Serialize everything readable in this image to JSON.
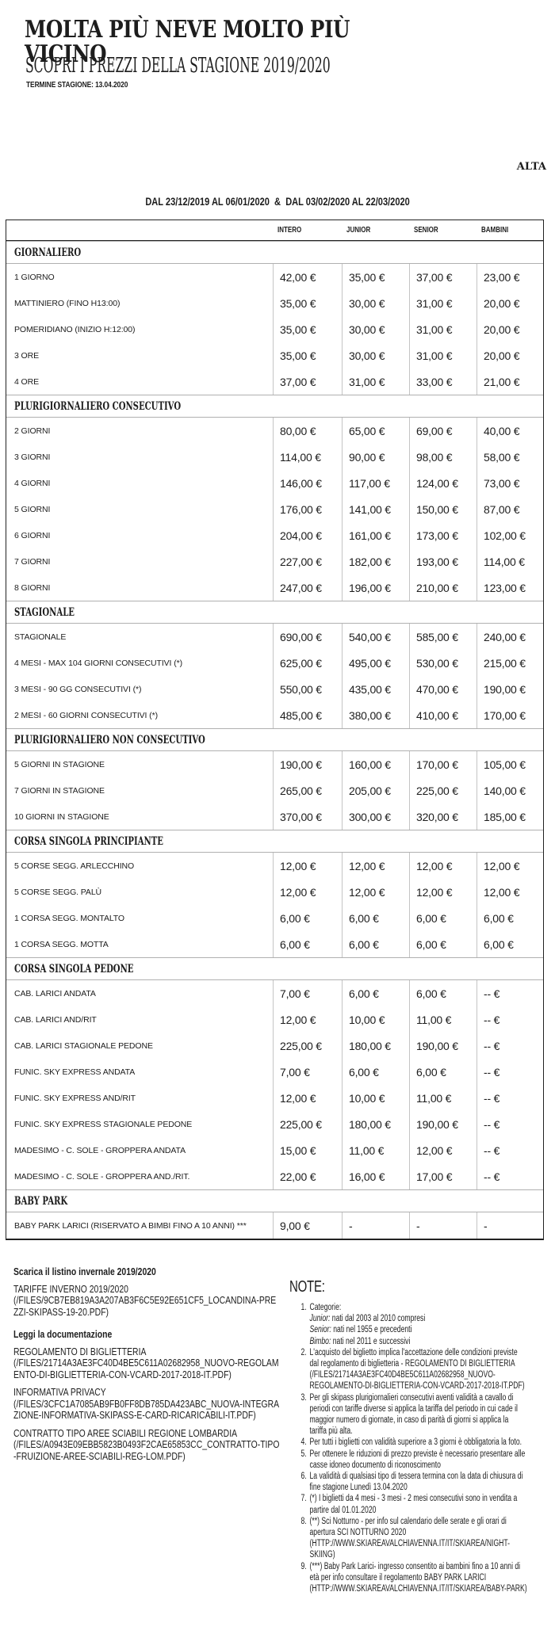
{
  "colors": {
    "text": "#1d1d1d",
    "table_border": "#222222",
    "section_line": "#b0b0b0",
    "column_divider": "#c4c4c4"
  },
  "header": {
    "title": "MOLTA PIÙ NEVE MOLTO PIÙ VICINO",
    "subtitle": "SCOPRI I PREZZI DELLA STAGIONE 2019/2020",
    "season_end": "TERMINE STAGIONE: 13.04.2020",
    "season_label": "ALTA",
    "period": "DAL 23/12/2019 AL 06/01/2020  &  DAL 03/02/2020 AL 22/03/2020"
  },
  "table": {
    "columns": [
      "INTERO",
      "JUNIOR",
      "SENIOR",
      "BAMBINI"
    ],
    "sections": [
      {
        "name": "GIORNALIERO",
        "rows": [
          {
            "label": "1 GIORNO",
            "prices": [
              "42,00 €",
              "35,00 €",
              "37,00 €",
              "23,00 €"
            ]
          },
          {
            "label": "MATTINIERO (FINO H13:00)",
            "prices": [
              "35,00 €",
              "30,00 €",
              "31,00 €",
              "20,00 €"
            ]
          },
          {
            "label": "POMERIDIANO (INIZIO H:12:00)",
            "prices": [
              "35,00 €",
              "30,00 €",
              "31,00 €",
              "20,00 €"
            ]
          },
          {
            "label": "3 ORE",
            "prices": [
              "35,00 €",
              "30,00 €",
              "31,00 €",
              "20,00 €"
            ]
          },
          {
            "label": "4 ORE",
            "prices": [
              "37,00 €",
              "31,00 €",
              "33,00 €",
              "21,00 €"
            ]
          }
        ]
      },
      {
        "name": "PLURIGIORNALIERO CONSECUTIVO",
        "rows": [
          {
            "label": "2 GIORNI",
            "prices": [
              "80,00 €",
              "65,00 €",
              "69,00 €",
              "40,00 €"
            ]
          },
          {
            "label": "3 GIORNI",
            "prices": [
              "114,00 €",
              "90,00 €",
              "98,00 €",
              "58,00 €"
            ]
          },
          {
            "label": "4 GIORNI",
            "prices": [
              "146,00 €",
              "117,00 €",
              "124,00 €",
              "73,00 €"
            ]
          },
          {
            "label": "5 GIORNI",
            "prices": [
              "176,00 €",
              "141,00 €",
              "150,00 €",
              "87,00 €"
            ]
          },
          {
            "label": "6 GIORNI",
            "prices": [
              "204,00 €",
              "161,00 €",
              "173,00 €",
              "102,00 €"
            ]
          },
          {
            "label": "7 GIORNI",
            "prices": [
              "227,00 €",
              "182,00 €",
              "193,00 €",
              "114,00 €"
            ]
          },
          {
            "label": "8 GIORNI",
            "prices": [
              "247,00 €",
              "196,00 €",
              "210,00 €",
              "123,00 €"
            ]
          }
        ]
      },
      {
        "name": "STAGIONALE",
        "rows": [
          {
            "label": "STAGIONALE",
            "prices": [
              "690,00 €",
              "540,00 €",
              "585,00 €",
              "240,00 €"
            ]
          },
          {
            "label": "4 MESI - MAX 104 GIORNI CONSECUTIVI (*)",
            "prices": [
              "625,00 €",
              "495,00 €",
              "530,00 €",
              "215,00 €"
            ]
          },
          {
            "label": "3 MESI - 90 GG CONSECUTIVI (*)",
            "prices": [
              "550,00 €",
              "435,00 €",
              "470,00 €",
              "190,00 €"
            ]
          },
          {
            "label": "2 MESI - 60 GIORNI CONSECUTIVI (*)",
            "prices": [
              "485,00 €",
              "380,00 €",
              "410,00 €",
              "170,00 €"
            ]
          }
        ]
      },
      {
        "name": "PLURIGIORNALIERO NON CONSECUTIVO",
        "rows": [
          {
            "label": "5 GIORNI IN STAGIONE",
            "prices": [
              "190,00 €",
              "160,00 €",
              "170,00 €",
              "105,00 €"
            ]
          },
          {
            "label": "7 GIORNI IN STAGIONE",
            "prices": [
              "265,00 €",
              "205,00 €",
              "225,00 €",
              "140,00 €"
            ]
          },
          {
            "label": "10 GIORNI IN STAGIONE",
            "prices": [
              "370,00 €",
              "300,00 €",
              "320,00 €",
              "185,00 €"
            ]
          }
        ]
      },
      {
        "name": "CORSA SINGOLA PRINCIPIANTE",
        "rows": [
          {
            "label": "5 CORSE SEGG. ARLECCHINO",
            "prices": [
              "12,00 €",
              "12,00 €",
              "12,00 €",
              "12,00 €"
            ]
          },
          {
            "label": "5 CORSE SEGG. PALÙ",
            "prices": [
              "12,00 €",
              "12,00 €",
              "12,00 €",
              "12,00 €"
            ]
          },
          {
            "label": "1 CORSA SEGG. MONTALTO",
            "prices": [
              "6,00 €",
              "6,00 €",
              "6,00 €",
              "6,00 €"
            ]
          },
          {
            "label": "1 CORSA SEGG. MOTTA",
            "prices": [
              "6,00 €",
              "6,00 €",
              "6,00 €",
              "6,00 €"
            ]
          }
        ]
      },
      {
        "name": "CORSA SINGOLA PEDONE",
        "rows": [
          {
            "label": "CAB. LARICI ANDATA",
            "prices": [
              "7,00 €",
              "6,00 €",
              "6,00 €",
              "-- €"
            ]
          },
          {
            "label": "CAB. LARICI AND/RIT",
            "prices": [
              "12,00 €",
              "10,00 €",
              "11,00 €",
              "-- €"
            ]
          },
          {
            "label": "CAB. LARICI STAGIONALE PEDONE",
            "prices": [
              "225,00 €",
              "180,00 €",
              "190,00 €",
              "-- €"
            ]
          },
          {
            "label": "FUNIC. SKY EXPRESS ANDATA",
            "prices": [
              "7,00 €",
              "6,00 €",
              "6,00 €",
              "-- €"
            ]
          },
          {
            "label": "FUNIC. SKY EXPRESS AND/RIT",
            "prices": [
              "12,00 €",
              "10,00 €",
              "11,00 €",
              "-- €"
            ]
          },
          {
            "label": "FUNIC. SKY EXPRESS STAGIONALE PEDONE",
            "prices": [
              "225,00 €",
              "180,00 €",
              "190,00 €",
              "-- €"
            ]
          },
          {
            "label": "MADESIMO - C. SOLE - GROPPERA ANDATA",
            "prices": [
              "15,00 €",
              "11,00 €",
              "12,00 €",
              "-- €"
            ]
          },
          {
            "label": "MADESIMO - C. SOLE - GROPPERA AND./RIT.",
            "prices": [
              "22,00 €",
              "16,00 €",
              "17,00 €",
              "-- €"
            ]
          }
        ]
      },
      {
        "name": "BABY PARK",
        "rows": [
          {
            "label": "BABY PARK LARICI (RISERVATO A BIMBI FINO A 10 ANNI) ***",
            "prices": [
              "9,00 €",
              "-",
              "-",
              "-"
            ]
          }
        ]
      }
    ]
  },
  "downloads": {
    "heading1": "Scarica il listino invernale 2019/2020",
    "links1": [
      {
        "label": "TARIFFE INVERNO 2019/2020",
        "url": "(/FILES/9CB7EB819A3A207AB3F6C5E92E651CF5_LOCANDINA-PREZZI-SKIPASS-19-20.PDF)"
      }
    ],
    "heading2": "Leggi la documentazione",
    "links2": [
      {
        "label": "REGOLAMENTO DI BIGLIETTERIA",
        "url": "(/FILES/21714A3AE3FC40D4BE5C611A02682958_NUOVO-REGOLAMENTO-DI-BIGLIETTERIA-CON-VCARD-2017-2018-IT.PDF)"
      },
      {
        "label": "INFORMATIVA PRIVACY",
        "url": "(/FILES/3CFC1A7085AB9FB0FF8DB785DA423ABC_NUOVA-INTEGRAZIONE-INFORMATIVA-SKIPASS-E-CARD-RICARICABILI-IT.PDF)"
      },
      {
        "label": "CONTRATTO TIPO AREE SCIABILI REGIONE LOMBARDIA",
        "url": "(/FILES/A0943E09EBB5823B0493F2CAE65853CC_CONTRATTO-TIPO-FRUIZIONE-AREE-SCIABILI-REG-LOM.PDF)"
      }
    ]
  },
  "notes": {
    "heading": "NOTE:",
    "items": [
      {
        "num": "1.",
        "segments": [
          {
            "text": "Categorie:",
            "link": false
          }
        ],
        "sublines": [
          {
            "lead": "Junior:",
            "rest": " nati dal 2003 al 2010 compresi"
          },
          {
            "lead": "Senior:",
            "rest": " nati nel 1955 e precedenti"
          },
          {
            "lead": "Bimbo:",
            "rest": " nati nel 2011 e successivi"
          }
        ]
      },
      {
        "num": "2.",
        "segments": [
          {
            "text": "L'acquisto del biglietto implica l'accettazione delle condizioni previste dal regolamento di biglietteria - ",
            "link": false
          },
          {
            "text": "REGOLAMENTO DI BIGLIETTERIA (/FILES/21714A3AE3FC40D4BE5C611A02682958_NUOVO-REGOLAMENTO-DI-BIGLIETTERIA-CON-VCARD-2017-2018-IT.PDF)",
            "link": true
          }
        ]
      },
      {
        "num": "3.",
        "segments": [
          {
            "text": "Per gli skipass plurigiornalieri consecutivi aventi validità a cavallo di periodi con tariffe diverse si applica la tariffa del periodo in cui cade il maggior numero di giornate, in caso di parità di giorni si applica la tariffa più alta.",
            "link": false
          }
        ]
      },
      {
        "num": "4.",
        "segments": [
          {
            "text": "Per tutti i biglietti con validità superiore a 3 giorni è obbligatoria la foto.",
            "link": false
          }
        ]
      },
      {
        "num": "5.",
        "segments": [
          {
            "text": "Per ottenere le riduzioni di prezzo previste è necessario presentare alle casse idoneo documento di riconoscimento",
            "link": false
          }
        ]
      },
      {
        "num": "6.",
        "segments": [
          {
            "text": "La validità di qualsiasi tipo di tessera termina con la data di chiusura di fine stagione Lunedì 13.04.2020",
            "link": false
          }
        ]
      },
      {
        "num": "7.",
        "segments": [
          {
            "text": "(*) I biglietti da 4 mesi - 3 mesi - 2 mesi consecutivi sono in vendita a partire dal 01.01.2020",
            "link": false
          }
        ]
      },
      {
        "num": "8.",
        "segments": [
          {
            "text": "(**) Sci Notturno - per info sul calendario delle serate e gli orari di apertura ",
            "link": false
          },
          {
            "text": "SCI NOTTURNO 2020 (HTTP://WWW.SKIAREAVALCHIAVENNA.IT/IT/SKIAREA/NIGHT-SKIING)",
            "link": true
          }
        ]
      },
      {
        "num": "9.",
        "segments": [
          {
            "text": "(***) Baby Park Larici- ingresso consentito ai bambini fino a 10 anni di età per info consultare il regolamento ",
            "link": false
          },
          {
            "text": "BABY PARK LARICI (HTTP://WWW.SKIAREAVALCHIAVENNA.IT/IT/SKIAREA/BABY-PARK)",
            "link": true
          }
        ]
      }
    ]
  }
}
